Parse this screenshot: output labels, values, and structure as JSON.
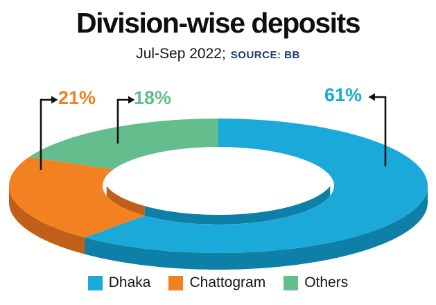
{
  "title": "Division-wise deposits",
  "subtitle": {
    "period": "Jul-Sep 2022;",
    "source": "SOURCE: BB",
    "source_color": "#1e3a6e"
  },
  "chart_data": {
    "type": "pie",
    "subtype": "3d-donut",
    "title": "Division-wise deposits",
    "period": "Jul-Sep 2022",
    "source": "BB",
    "categories": [
      "Dhaka",
      "Chattogram",
      "Others"
    ],
    "values": [
      61,
      21,
      18
    ],
    "unit": "%",
    "colors": [
      "#1aa9d8",
      "#f18121",
      "#63bd8d"
    ],
    "dark_colors": [
      "#0e7fa6",
      "#c05f17",
      "#479a6c"
    ],
    "start_angle_deg": 0,
    "direction": "clockwise",
    "legend_position": "bottom"
  },
  "callouts": [
    {
      "label": "21%",
      "category": "Chattogram",
      "color": "#f18121"
    },
    {
      "label": "18%",
      "category": "Others",
      "color": "#63bd8d"
    },
    {
      "label": "61%",
      "category": "Dhaka",
      "color": "#1aa9d8"
    }
  ],
  "legend": [
    {
      "label": "Dhaka",
      "color": "#1aa9d8"
    },
    {
      "label": "Chattogram",
      "color": "#f18121"
    },
    {
      "label": "Others",
      "color": "#63bd8d"
    }
  ]
}
